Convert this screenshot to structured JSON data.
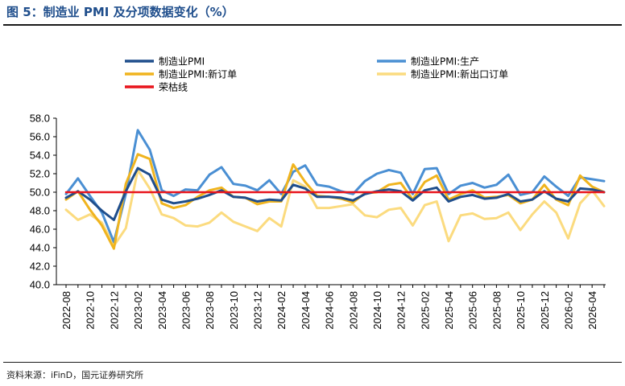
{
  "title": "图 5：制造业 PMI 及分项数据变化（%）",
  "source": "资料来源：iFinD，国元证券研究所",
  "chart_data": {
    "type": "line",
    "title": "",
    "xlabel": "",
    "ylabel": "",
    "ylim": [
      40,
      58
    ],
    "yticks": [
      40,
      42,
      44,
      46,
      48,
      50,
      52,
      54,
      56,
      58
    ],
    "x_tick_labels": [
      "2022-08",
      "2022-10",
      "2022-12",
      "2023-02",
      "2023-04",
      "2023-06",
      "2023-08",
      "2023-10",
      "2023-12",
      "2024-02",
      "2024-04",
      "2024-06",
      "2024-08",
      "2024-10",
      "2024-12",
      "2025-02",
      "2025-04",
      "2025-06",
      "2025-08",
      "2025-10",
      "2025-12",
      "2026-02",
      "2026-04"
    ],
    "x": [
      "2022-08",
      "2022-09",
      "2022-10",
      "2022-11",
      "2022-12",
      "2023-01",
      "2023-02",
      "2023-03",
      "2023-04",
      "2023-05",
      "2023-06",
      "2023-07",
      "2023-08",
      "2023-09",
      "2023-10",
      "2023-11",
      "2023-12",
      "2024-01",
      "2024-02",
      "2024-03",
      "2024-04",
      "2024-05",
      "2024-06",
      "2024-07",
      "2024-08",
      "2024-09",
      "2024-10",
      "2024-11",
      "2024-12",
      "2025-01",
      "2025-02",
      "2025-03",
      "2025-04",
      "2025-05",
      "2025-06",
      "2025-07",
      "2025-08",
      "2025-09",
      "2025-10",
      "2025-11",
      "2025-12",
      "2026-01",
      "2026-02",
      "2026-03",
      "2026-04",
      "2026-05"
    ],
    "legend_position": "top",
    "grid": false,
    "series": [
      {
        "name": "制造业PMI",
        "color": "#1f4e8c",
        "width": 3,
        "values": [
          49.4,
          50.1,
          49.2,
          48.0,
          47.0,
          50.1,
          52.6,
          51.9,
          49.2,
          48.8,
          49.0,
          49.3,
          49.7,
          50.2,
          49.5,
          49.4,
          49.0,
          49.2,
          49.1,
          50.8,
          50.4,
          49.5,
          49.5,
          49.4,
          49.1,
          49.8,
          50.1,
          50.3,
          50.1,
          49.1,
          50.2,
          50.5,
          49.0,
          49.5,
          49.7,
          49.3,
          49.4,
          49.8,
          49.0,
          49.2,
          50.1,
          49.3,
          49.0,
          50.4,
          50.3,
          50.0
        ]
      },
      {
        "name": "制造业PMI:生产",
        "color": "#4a8fd3",
        "width": 3,
        "values": [
          49.8,
          51.5,
          49.6,
          47.8,
          44.6,
          49.8,
          56.7,
          54.6,
          50.2,
          49.6,
          50.3,
          50.2,
          51.9,
          52.7,
          50.9,
          50.7,
          50.2,
          51.3,
          49.8,
          52.2,
          52.9,
          50.8,
          50.6,
          50.1,
          49.8,
          51.2,
          52.0,
          52.4,
          52.1,
          49.8,
          52.5,
          52.6,
          49.8,
          50.7,
          51.0,
          50.5,
          50.8,
          51.9,
          49.7,
          50.0,
          51.7,
          50.6,
          49.6,
          51.6,
          51.4,
          51.2
        ]
      },
      {
        "name": "制造业PMI:新订单",
        "color": "#f0b41e",
        "width": 3,
        "values": [
          49.2,
          50.1,
          48.1,
          46.4,
          43.9,
          50.9,
          54.1,
          53.6,
          48.8,
          48.3,
          48.6,
          49.5,
          50.2,
          50.5,
          49.5,
          49.4,
          48.7,
          49.0,
          49.0,
          53.0,
          51.1,
          49.6,
          49.5,
          49.3,
          48.9,
          49.9,
          50.0,
          50.8,
          51.0,
          49.2,
          51.1,
          51.8,
          49.2,
          49.8,
          50.2,
          49.4,
          49.5,
          49.7,
          48.8,
          49.2,
          50.8,
          49.2,
          48.6,
          51.8,
          50.6,
          50.0
        ]
      },
      {
        "name": "制造业PMI:新出口订单",
        "color": "#fbdb7f",
        "width": 3,
        "values": [
          48.1,
          47.0,
          47.6,
          46.7,
          44.2,
          46.1,
          52.4,
          50.4,
          47.6,
          47.2,
          46.4,
          46.3,
          46.7,
          47.8,
          46.8,
          46.3,
          45.8,
          47.2,
          46.3,
          51.3,
          50.6,
          48.3,
          48.3,
          48.5,
          48.7,
          47.5,
          47.3,
          48.1,
          48.3,
          46.4,
          48.6,
          49.0,
          44.7,
          47.5,
          47.7,
          47.1,
          47.2,
          47.8,
          45.9,
          47.6,
          49.0,
          47.8,
          45.0,
          48.8,
          50.2,
          48.5
        ]
      },
      {
        "name": "荣枯线",
        "color": "#e8141c",
        "width": 2.5,
        "values": [
          50,
          50,
          50,
          50,
          50,
          50,
          50,
          50,
          50,
          50,
          50,
          50,
          50,
          50,
          50,
          50,
          50,
          50,
          50,
          50,
          50,
          50,
          50,
          50,
          50,
          50,
          50,
          50,
          50,
          50,
          50,
          50,
          50,
          50,
          50,
          50,
          50,
          50,
          50,
          50,
          50,
          50,
          50,
          50,
          50,
          50
        ]
      }
    ]
  }
}
